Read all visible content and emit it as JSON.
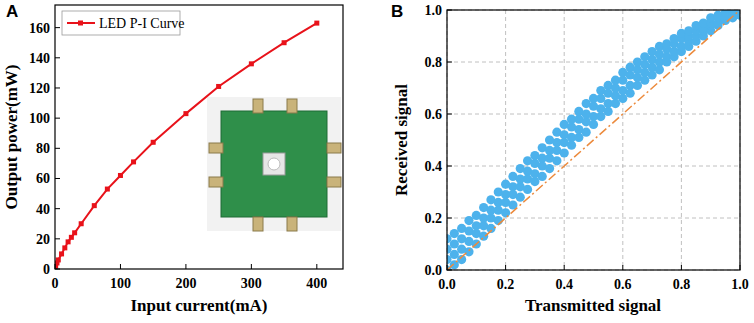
{
  "chart_data": [
    {
      "type": "line",
      "title": "A",
      "xlabel": "Input current(mA)",
      "ylabel": "Output power(mW)",
      "xlim": [
        0,
        440
      ],
      "ylim": [
        0,
        175
      ],
      "xticks": [
        0,
        100,
        200,
        300,
        400
      ],
      "yticks": [
        0,
        20,
        40,
        60,
        80,
        100,
        120,
        140,
        160
      ],
      "grid": false,
      "legend": "upper left",
      "series": [
        {
          "name": "LED P-I Curve",
          "color": "#e8121a",
          "marker": "square",
          "line_style": "solid",
          "x": [
            0,
            1,
            3,
            5,
            10,
            15,
            20,
            25,
            30,
            40,
            60,
            80,
            100,
            120,
            150,
            200,
            250,
            300,
            350,
            400
          ],
          "values": [
            0,
            2,
            4,
            6,
            10,
            14,
            18,
            21,
            24,
            30,
            42,
            53,
            62,
            71,
            84,
            103,
            121,
            136,
            150,
            163
          ]
        }
      ]
    },
    {
      "type": "scatter",
      "title": "B",
      "xlabel": "Transmitted signal",
      "ylabel": "Received signal",
      "xlim": [
        0,
        1
      ],
      "ylim": [
        0,
        1
      ],
      "xticks": [
        {
          "value": 0,
          "label": "0.0"
        },
        {
          "value": 0.2,
          "label": "0.2"
        },
        {
          "value": 0.4,
          "label": "0.4"
        },
        {
          "value": 0.6,
          "label": "0.6"
        },
        {
          "value": 0.8,
          "label": "0.8"
        },
        {
          "value": 1,
          "label": "1.0"
        }
      ],
      "yticks": [
        {
          "value": 0,
          "label": "0.0"
        },
        {
          "value": 0.2,
          "label": "0.2"
        },
        {
          "value": 0.4,
          "label": "0.4"
        },
        {
          "value": 0.6,
          "label": "0.6"
        },
        {
          "value": 0.8,
          "label": "0.8"
        },
        {
          "value": 1,
          "label": "1.0"
        }
      ],
      "grid": true,
      "series": [
        {
          "type": "scatter",
          "color": "#4db2ec",
          "marker": "circle",
          "x": [
            0,
            0,
            0,
            0,
            0.025,
            0.025,
            0.025,
            0.025,
            0.05,
            0.05,
            0.05,
            0.05,
            0.075,
            0.075,
            0.075,
            0.075,
            0.1,
            0.1,
            0.1,
            0.1,
            0.125,
            0.125,
            0.125,
            0.125,
            0.15,
            0.15,
            0.15,
            0.15,
            0.175,
            0.175,
            0.175,
            0.175,
            0.2,
            0.2,
            0.2,
            0.2,
            0.225,
            0.225,
            0.225,
            0.225,
            0.25,
            0.25,
            0.25,
            0.25,
            0.275,
            0.275,
            0.275,
            0.275,
            0.3,
            0.3,
            0.3,
            0.3,
            0.325,
            0.325,
            0.325,
            0.325,
            0.35,
            0.35,
            0.35,
            0.35,
            0.375,
            0.375,
            0.375,
            0.375,
            0.4,
            0.4,
            0.4,
            0.4,
            0.425,
            0.425,
            0.425,
            0.425,
            0.45,
            0.45,
            0.45,
            0.45,
            0.475,
            0.475,
            0.475,
            0.475,
            0.5,
            0.5,
            0.5,
            0.5,
            0.525,
            0.525,
            0.525,
            0.525,
            0.55,
            0.55,
            0.55,
            0.55,
            0.575,
            0.575,
            0.575,
            0.575,
            0.6,
            0.6,
            0.6,
            0.6,
            0.625,
            0.625,
            0.625,
            0.625,
            0.65,
            0.65,
            0.65,
            0.65,
            0.675,
            0.675,
            0.675,
            0.675,
            0.7,
            0.7,
            0.7,
            0.7,
            0.725,
            0.725,
            0.725,
            0.725,
            0.75,
            0.75,
            0.75,
            0.75,
            0.775,
            0.775,
            0.775,
            0.775,
            0.8,
            0.8,
            0.8,
            0.8,
            0.825,
            0.825,
            0.825,
            0.825,
            0.85,
            0.85,
            0.85,
            0.85,
            0.875,
            0.875,
            0.875,
            0.875,
            0.9,
            0.9,
            0.9,
            0.9,
            0.925,
            0.925,
            0.925,
            0.925,
            0.95,
            0.95,
            0.95,
            0.95,
            0.975,
            0.975,
            0.975,
            0.975,
            1,
            1,
            1,
            1
          ],
          "values": [
            0,
            0.04,
            0.08,
            0.12,
            0.02,
            0.06,
            0.1,
            0.14,
            0.04,
            0.08,
            0.12,
            0.16,
            0.07,
            0.11,
            0.15,
            0.19,
            0.1,
            0.14,
            0.17,
            0.21,
            0.13,
            0.17,
            0.2,
            0.24,
            0.16,
            0.2,
            0.23,
            0.27,
            0.19,
            0.23,
            0.26,
            0.3,
            0.22,
            0.26,
            0.29,
            0.33,
            0.25,
            0.29,
            0.32,
            0.36,
            0.28,
            0.32,
            0.35,
            0.39,
            0.31,
            0.35,
            0.38,
            0.42,
            0.34,
            0.37,
            0.41,
            0.44,
            0.36,
            0.4,
            0.43,
            0.47,
            0.39,
            0.43,
            0.46,
            0.5,
            0.42,
            0.46,
            0.49,
            0.53,
            0.45,
            0.49,
            0.52,
            0.56,
            0.48,
            0.51,
            0.55,
            0.58,
            0.51,
            0.54,
            0.58,
            0.61,
            0.53,
            0.57,
            0.6,
            0.64,
            0.56,
            0.59,
            0.63,
            0.66,
            0.59,
            0.62,
            0.66,
            0.69,
            0.61,
            0.64,
            0.68,
            0.71,
            0.64,
            0.67,
            0.7,
            0.73,
            0.66,
            0.69,
            0.73,
            0.76,
            0.68,
            0.71,
            0.75,
            0.78,
            0.71,
            0.74,
            0.77,
            0.8,
            0.73,
            0.76,
            0.79,
            0.82,
            0.75,
            0.78,
            0.81,
            0.84,
            0.77,
            0.8,
            0.83,
            0.86,
            0.8,
            0.82,
            0.85,
            0.87,
            0.82,
            0.84,
            0.87,
            0.89,
            0.84,
            0.86,
            0.89,
            0.91,
            0.86,
            0.88,
            0.9,
            0.92,
            0.88,
            0.9,
            0.92,
            0.94,
            0.9,
            0.92,
            0.93,
            0.95,
            0.92,
            0.94,
            0.95,
            0.97,
            0.94,
            0.95,
            0.97,
            0.98,
            0.96,
            0.97,
            0.98,
            0.99,
            0.97,
            0.98,
            0.99,
            1,
            0.98,
            0.99,
            1,
            1
          ]
        },
        {
          "type": "line",
          "color": "#ec8a3c",
          "line_style": "dashdot",
          "x": [
            0,
            1
          ],
          "values": [
            0,
            1
          ]
        }
      ]
    }
  ]
}
